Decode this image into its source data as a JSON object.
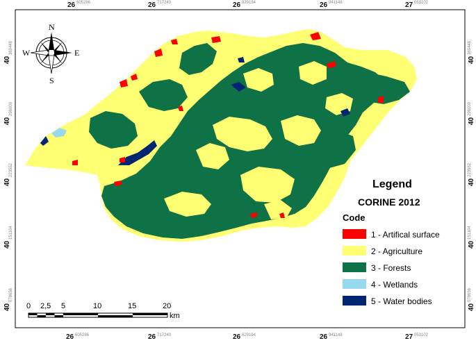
{
  "top_ticks": [
    {
      "major": "26",
      "minor": "605286"
    },
    {
      "major": "26",
      "minor": "717240"
    },
    {
      "major": "26",
      "minor": "829194"
    },
    {
      "major": "26",
      "minor": "941148"
    },
    {
      "major": "27",
      "minor": "053102"
    }
  ],
  "bottom_ticks": [
    {
      "major": "26",
      "minor": "605286"
    },
    {
      "major": "26",
      "minor": "717240"
    },
    {
      "major": "26",
      "minor": "829194"
    },
    {
      "major": "26",
      "minor": "941148"
    },
    {
      "major": "27",
      "minor": "053102"
    }
  ],
  "side_ticks": [
    {
      "major": "40",
      "minor": "369448"
    },
    {
      "major": "40",
      "minor": "296000"
    },
    {
      "major": "40",
      "minor": "223552"
    },
    {
      "major": "40",
      "minor": "151104"
    },
    {
      "major": "40",
      "minor": "078656"
    }
  ],
  "compass": {
    "n": "N",
    "s": "S",
    "e": "E",
    "w": "W"
  },
  "legend": {
    "title": "Legend",
    "subtitle": "CORINE 2012",
    "code_heading": "Code",
    "items": [
      {
        "label": "1 - Artifical surface",
        "color": "#ff0000"
      },
      {
        "label": "2 - Agriculture",
        "color": "#ffff73"
      },
      {
        "label": "3 - Forests",
        "color": "#0e7246"
      },
      {
        "label": "4 - Wetlands",
        "color": "#99d9f0"
      },
      {
        "label": "5 - Water bodies",
        "color": "#002673"
      }
    ]
  },
  "scale_bar": {
    "labels": [
      "0",
      "2,5",
      "5",
      "10",
      "15",
      "20"
    ],
    "unit": "km"
  },
  "colors": {
    "agriculture": "#ffff73",
    "forest": "#0e7246",
    "urban": "#ff0000",
    "wetland": "#99d9f0",
    "water": "#002673"
  }
}
